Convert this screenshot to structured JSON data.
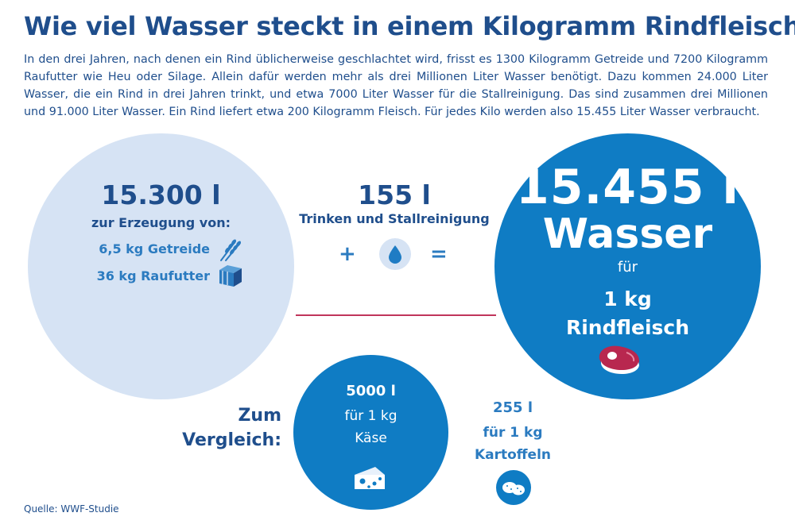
{
  "title": "Wie viel Wasser steckt in einem Kilogramm Rindfleisch?",
  "intro": "In den drei Jahren, nach denen ein Rind üblicherweise geschlachtet wird, frisst es 1300 Kilogramm Getreide und 7200 Kilogramm Raufutter wie Heu oder Silage. Allein dafür werden mehr als drei Millionen Liter Wasser benötigt. Dazu kommen 24.000 Liter Wasser, die ein Rind in drei Jahren trinkt, und etwa 7000 Liter Wasser für die Stallreinigung. Das sind zusammen drei Millionen und 91.000 Liter Wasser. Ein Rind liefert etwa 200 Kilogramm Fleisch. Für jedes Kilo werden also 15.455 Liter Wasser verbraucht.",
  "feed": {
    "amount": "15.300 l",
    "label": "zur Erzeugung von:",
    "items": [
      {
        "label": "6,5 kg Getreide",
        "icon": "wheat-icon"
      },
      {
        "label": "36 kg Raufutter",
        "icon": "hay-bale-icon"
      }
    ]
  },
  "drinking": {
    "amount": "155 l",
    "label": "Trinken und Stallreinigung",
    "plus": "+",
    "equals": "=",
    "icon": "water-drop-icon"
  },
  "total": {
    "amount": "15.455 l",
    "unit": "Wasser",
    "fuer": "für",
    "quantity": "1 kg",
    "product": "Rindfleisch",
    "icon": "steak-icon"
  },
  "comparison": {
    "heading_line1": "Zum",
    "heading_line2": "Vergleich:",
    "cheese": {
      "amount": "5000 l",
      "line1": "für 1 kg",
      "line2": "Käse",
      "icon": "cheese-icon"
    },
    "potatoes": {
      "amount": "255 l",
      "line1": "für 1 kg",
      "line2": "Kartoffeln",
      "icon": "potato-icon"
    }
  },
  "source": "Quelle: WWF-Studie",
  "colors": {
    "dark_blue": "#1f4e8c",
    "mid_blue": "#2b7bc0",
    "circle_blue": "#0f7cc4",
    "light_blue": "#d6e3f4",
    "accent_red": "#c0355b"
  }
}
